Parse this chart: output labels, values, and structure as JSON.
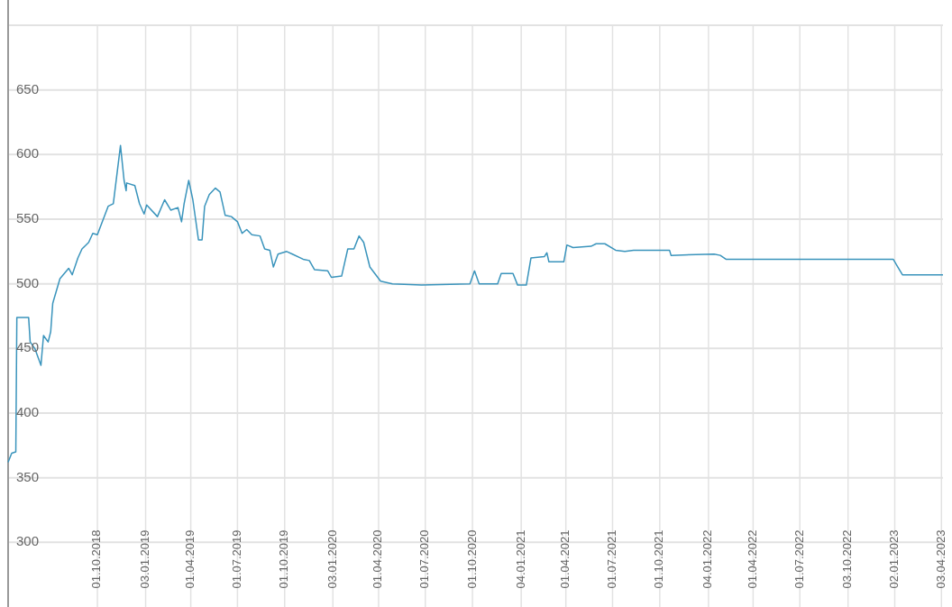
{
  "chart_data": {
    "type": "line",
    "xlim": [
      "2018-04-10",
      "2023-04-06"
    ],
    "ylim": [
      250,
      700
    ],
    "yticks": [
      300,
      350,
      400,
      450,
      500,
      550,
      600,
      650,
      {
        "value": 700,
        "label": null
      }
    ],
    "xticks": [
      {
        "value": "2018-10-01",
        "label": "01.10.2018"
      },
      {
        "value": "2019-01-03",
        "label": "03.01.2019"
      },
      {
        "value": "2019-04-01",
        "label": "01.04.2019"
      },
      {
        "value": "2019-07-01",
        "label": "01.07.2019"
      },
      {
        "value": "2019-10-01",
        "label": "01.10.2019"
      },
      {
        "value": "2020-01-03",
        "label": "03.01.2020"
      },
      {
        "value": "2020-04-01",
        "label": "01.04.2020"
      },
      {
        "value": "2020-07-01",
        "label": "01.07.2020"
      },
      {
        "value": "2020-10-01",
        "label": "01.10.2020"
      },
      {
        "value": "2021-01-04",
        "label": "04.01.2021"
      },
      {
        "value": "2021-04-01",
        "label": "01.04.2021"
      },
      {
        "value": "2021-07-01",
        "label": "01.07.2021"
      },
      {
        "value": "2021-10-01",
        "label": "01.10.2021"
      },
      {
        "value": "2022-01-04",
        "label": "04.01.2022"
      },
      {
        "value": "2022-04-01",
        "label": "01.04.2022"
      },
      {
        "value": "2022-07-01",
        "label": "01.07.2022"
      },
      {
        "value": "2022-10-03",
        "label": "03.10.2022"
      },
      {
        "value": "2023-01-02",
        "label": "02.01.2023"
      },
      {
        "value": "2023-04-03",
        "label": "03.04.2023"
      }
    ],
    "grid": true,
    "marker": "none",
    "line_style": "solid",
    "x": [
      "2018-04-10",
      "2018-04-17",
      "2018-04-25",
      "2018-04-27",
      "2018-05-20",
      "2018-05-23",
      "2018-06-01",
      "2018-06-13",
      "2018-06-18",
      "2018-06-27",
      "2018-07-02",
      "2018-07-06",
      "2018-07-20",
      "2018-08-06",
      "2018-08-13",
      "2018-08-24",
      "2018-09-01",
      "2018-09-14",
      "2018-09-22",
      "2018-10-01",
      "2018-10-22",
      "2018-11-01",
      "2018-11-15",
      "2018-11-22",
      "2018-11-26",
      "2018-11-27",
      "2018-12-13",
      "2018-12-22",
      "2018-12-31",
      "2019-01-05",
      "2019-01-26",
      "2019-02-09",
      "2019-02-21",
      "2019-03-07",
      "2019-03-14",
      "2019-03-19",
      "2019-03-28",
      "2019-04-05",
      "2019-04-16",
      "2019-04-23",
      "2019-04-28",
      "2019-05-07",
      "2019-05-19",
      "2019-05-28",
      "2019-06-07",
      "2019-06-19",
      "2019-07-01",
      "2019-07-10",
      "2019-07-19",
      "2019-07-29",
      "2019-08-14",
      "2019-08-23",
      "2019-09-02",
      "2019-09-09",
      "2019-09-18",
      "2019-10-05",
      "2019-10-16",
      "2019-11-06",
      "2019-11-18",
      "2019-11-28",
      "2019-12-24",
      "2019-12-31",
      "2020-01-20",
      "2020-02-01",
      "2020-02-13",
      "2020-02-23",
      "2020-03-03",
      "2020-03-15",
      "2020-04-05",
      "2020-04-28",
      "2020-06-24",
      "2020-09-26",
      "2020-10-05",
      "2020-10-14",
      "2020-11-19",
      "2020-11-26",
      "2020-12-19",
      "2020-12-28",
      "2021-01-14",
      "2021-01-23",
      "2021-02-18",
      "2021-02-23",
      "2021-02-27",
      "2021-03-28",
      "2021-04-03",
      "2021-04-15",
      "2021-05-20",
      "2021-05-30",
      "2021-06-16",
      "2021-07-07",
      "2021-07-25",
      "2021-08-11",
      "2021-10-20",
      "2021-10-23",
      "2022-01-15",
      "2022-01-27",
      "2022-02-07",
      "2022-12-30",
      "2023-01-08",
      "2023-01-17",
      "2023-04-06"
    ],
    "series": [
      {
        "color": "#3a94bc",
        "values": [
          362,
          369,
          370,
          474,
          474,
          455,
          450,
          437,
          460,
          455,
          463,
          485,
          504,
          512,
          507,
          520,
          527,
          532,
          539,
          538,
          560,
          562,
          607,
          580,
          572,
          578,
          576,
          562,
          554,
          561,
          552,
          565,
          557,
          559,
          548,
          562,
          580,
          565,
          534,
          534,
          560,
          569,
          574,
          571,
          553,
          552,
          548,
          539,
          542,
          538,
          537,
          527,
          526,
          513,
          523,
          525,
          523,
          519,
          518,
          511,
          510,
          505,
          506,
          527,
          527,
          537,
          532,
          513,
          502,
          500,
          499,
          500,
          510,
          500,
          500,
          508,
          508,
          499,
          499,
          520,
          521,
          524,
          517,
          517,
          530,
          528,
          529,
          531,
          531,
          526,
          525,
          526,
          526,
          522,
          523,
          522,
          519,
          519,
          513,
          507,
          507
        ]
      }
    ]
  }
}
